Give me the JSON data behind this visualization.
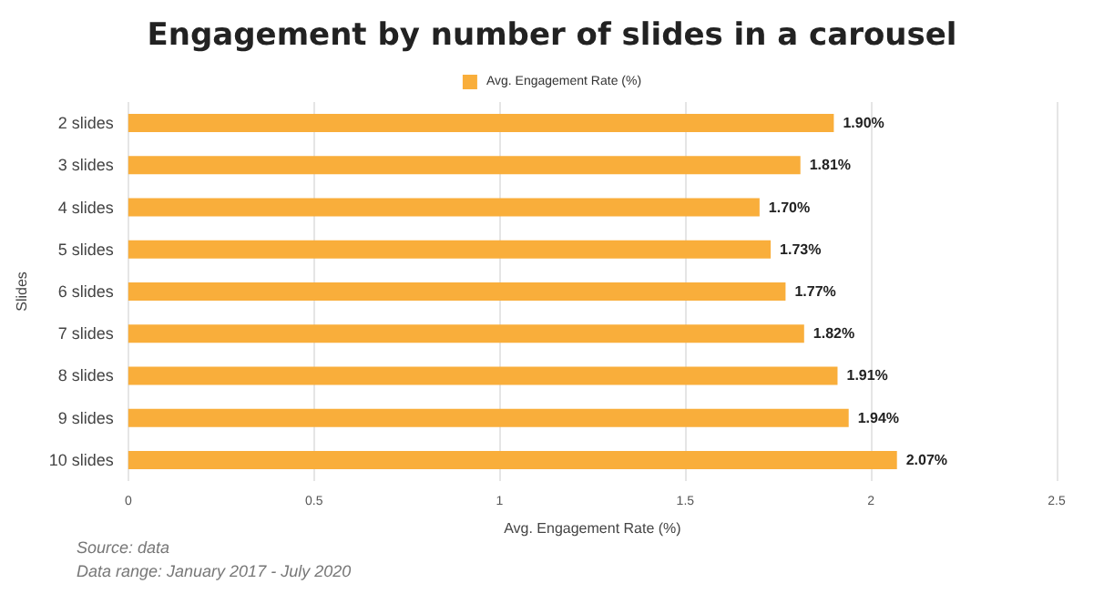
{
  "chart_data": {
    "type": "bar",
    "orientation": "horizontal",
    "title": "Engagement by number of slides in a carousel",
    "xlabel": "Avg. Engagement Rate (%)",
    "ylabel": "Slides",
    "categories": [
      "2 slides",
      "3 slides",
      "4 slides",
      "5 slides",
      "6 slides",
      "7 slides",
      "8 slides",
      "9 slides",
      "10 slides"
    ],
    "series": [
      {
        "name": "Avg. Engagement Rate (%)",
        "color": "#f9ae3b",
        "values": [
          1.9,
          1.81,
          1.7,
          1.73,
          1.77,
          1.82,
          1.91,
          1.94,
          2.07
        ],
        "value_labels": [
          "1.90%",
          "1.81%",
          "1.70%",
          "1.73%",
          "1.77%",
          "1.82%",
          "1.91%",
          "1.94%",
          "2.07%"
        ]
      }
    ],
    "xlim": [
      0,
      2.5
    ],
    "xticks": [
      0,
      0.5,
      1,
      1.5,
      2,
      2.5
    ],
    "grid": "x",
    "legend": "top",
    "annotations": [
      "Source: data",
      "Data range: January 2017 - July 2020"
    ]
  }
}
